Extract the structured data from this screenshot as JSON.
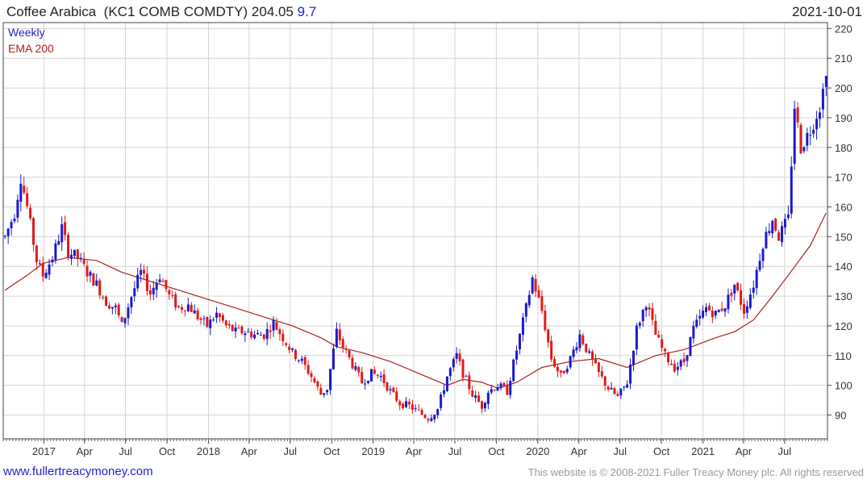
{
  "header": {
    "name": "Coffee Arabica",
    "ticker": "(KC1 COMB COMDTY)",
    "last": "204.05",
    "change": "9.7",
    "date": "2021-10-01"
  },
  "legend": {
    "weekly_label": "Weekly",
    "weekly_color": "#2222cc",
    "ema_label": "EMA 200",
    "ema_color": "#aa2222"
  },
  "colors": {
    "up": "#1a1acc",
    "down": "#e01a1a",
    "grid": "#d4d4d4",
    "ema": "#aa2222"
  },
  "footer": {
    "site": "www.fullertreacymoney.com",
    "copyright": "This website is © 2008-2021 Fuller Treacy Money plc. All rights reserved"
  },
  "chart_data": {
    "type": "candlestick",
    "interval": "weekly",
    "y_range": [
      82,
      222
    ],
    "y_ticks": [
      90,
      100,
      110,
      120,
      130,
      140,
      150,
      160,
      170,
      180,
      190,
      200,
      210,
      220
    ],
    "x_range": [
      "2016-10-03",
      "2021-10-04"
    ],
    "x_ticks": [
      {
        "label": "2017",
        "date": "2017-01-01"
      },
      {
        "label": "Apr",
        "date": "2017-04-01"
      },
      {
        "label": "Jul",
        "date": "2017-07-01"
      },
      {
        "label": "Oct",
        "date": "2017-10-01"
      },
      {
        "label": "2018",
        "date": "2018-01-01"
      },
      {
        "label": "Apr",
        "date": "2018-04-01"
      },
      {
        "label": "Jul",
        "date": "2018-07-01"
      },
      {
        "label": "Oct",
        "date": "2018-10-01"
      },
      {
        "label": "2019",
        "date": "2019-01-01"
      },
      {
        "label": "Apr",
        "date": "2019-04-01"
      },
      {
        "label": "Jul",
        "date": "2019-07-01"
      },
      {
        "label": "Oct",
        "date": "2019-10-01"
      },
      {
        "label": "2020",
        "date": "2020-01-01"
      },
      {
        "label": "Apr",
        "date": "2020-04-01"
      },
      {
        "label": "Jul",
        "date": "2020-07-01"
      },
      {
        "label": "Oct",
        "date": "2020-10-01"
      },
      {
        "label": "2021",
        "date": "2021-01-01"
      },
      {
        "label": "Apr",
        "date": "2021-04-01"
      },
      {
        "label": "Jul",
        "date": "2021-07-01"
      }
    ],
    "close_path": [
      [
        "2016-10-07",
        150
      ],
      [
        "2016-10-28",
        158
      ],
      [
        "2016-11-11",
        170
      ],
      [
        "2016-11-25",
        160
      ],
      [
        "2016-12-16",
        142
      ],
      [
        "2016-12-30",
        137
      ],
      [
        "2017-01-20",
        143
      ],
      [
        "2017-02-10",
        153
      ],
      [
        "2017-02-24",
        145
      ],
      [
        "2017-03-17",
        143
      ],
      [
        "2017-04-07",
        138
      ],
      [
        "2017-04-28",
        134
      ],
      [
        "2017-05-19",
        128
      ],
      [
        "2017-06-09",
        126
      ],
      [
        "2017-06-23",
        120
      ],
      [
        "2017-07-14",
        130
      ],
      [
        "2017-08-04",
        138
      ],
      [
        "2017-08-25",
        131
      ],
      [
        "2017-09-15",
        137
      ],
      [
        "2017-10-06",
        130
      ],
      [
        "2017-10-27",
        126
      ],
      [
        "2017-11-17",
        127
      ],
      [
        "2017-12-08",
        123
      ],
      [
        "2017-12-29",
        120
      ],
      [
        "2018-01-19",
        124
      ],
      [
        "2018-02-09",
        120
      ],
      [
        "2018-03-02",
        118
      ],
      [
        "2018-03-23",
        118
      ],
      [
        "2018-04-13",
        117
      ],
      [
        "2018-05-04",
        117
      ],
      [
        "2018-05-25",
        121
      ],
      [
        "2018-06-15",
        116
      ],
      [
        "2018-07-06",
        111
      ],
      [
        "2018-07-27",
        108
      ],
      [
        "2018-08-17",
        103
      ],
      [
        "2018-09-07",
        97
      ],
      [
        "2018-09-21",
        99
      ],
      [
        "2018-10-12",
        118
      ],
      [
        "2018-10-26",
        113
      ],
      [
        "2018-11-16",
        107
      ],
      [
        "2018-12-07",
        101
      ],
      [
        "2018-12-28",
        104
      ],
      [
        "2019-01-18",
        103
      ],
      [
        "2019-02-08",
        98
      ],
      [
        "2019-03-01",
        94
      ],
      [
        "2019-03-22",
        93
      ],
      [
        "2019-04-12",
        91
      ],
      [
        "2019-05-03",
        89
      ],
      [
        "2019-05-24",
        92
      ],
      [
        "2019-06-14",
        103
      ],
      [
        "2019-07-05",
        110
      ],
      [
        "2019-07-19",
        104
      ],
      [
        "2019-08-09",
        97
      ],
      [
        "2019-08-30",
        93
      ],
      [
        "2019-09-13",
        98
      ],
      [
        "2019-10-04",
        100
      ],
      [
        "2019-10-25",
        98
      ],
      [
        "2019-11-15",
        112
      ],
      [
        "2019-12-06",
        126
      ],
      [
        "2019-12-20",
        136
      ],
      [
        "2020-01-10",
        125
      ],
      [
        "2020-01-31",
        109
      ],
      [
        "2020-02-21",
        103
      ],
      [
        "2020-03-13",
        109
      ],
      [
        "2020-04-03",
        117
      ],
      [
        "2020-04-24",
        110
      ],
      [
        "2020-05-15",
        104
      ],
      [
        "2020-06-05",
        99
      ],
      [
        "2020-06-26",
        96
      ],
      [
        "2020-07-17",
        101
      ],
      [
        "2020-08-07",
        119
      ],
      [
        "2020-08-28",
        128
      ],
      [
        "2020-09-18",
        117
      ],
      [
        "2020-10-09",
        110
      ],
      [
        "2020-10-30",
        106
      ],
      [
        "2020-11-20",
        108
      ],
      [
        "2020-12-11",
        119
      ],
      [
        "2021-01-08",
        126
      ],
      [
        "2021-01-29",
        124
      ],
      [
        "2021-02-19",
        127
      ],
      [
        "2021-03-12",
        134
      ],
      [
        "2021-04-02",
        125
      ],
      [
        "2021-04-23",
        134
      ],
      [
        "2021-05-14",
        148
      ],
      [
        "2021-06-04",
        156
      ],
      [
        "2021-06-18",
        150
      ],
      [
        "2021-07-09",
        156
      ],
      [
        "2021-07-23",
        194
      ],
      [
        "2021-08-06",
        180
      ],
      [
        "2021-08-27",
        186
      ],
      [
        "2021-09-17",
        194
      ],
      [
        "2021-10-01",
        204.05
      ]
    ],
    "ema_200": [
      [
        "2016-10-07",
        132
      ],
      [
        "2016-11-25",
        137
      ],
      [
        "2016-12-30",
        141
      ],
      [
        "2017-02-24",
        143
      ],
      [
        "2017-04-28",
        142
      ],
      [
        "2017-06-23",
        138
      ],
      [
        "2017-08-25",
        135
      ],
      [
        "2017-10-27",
        132
      ],
      [
        "2017-12-29",
        129
      ],
      [
        "2018-03-02",
        126
      ],
      [
        "2018-05-04",
        123
      ],
      [
        "2018-07-06",
        120
      ],
      [
        "2018-09-07",
        116
      ],
      [
        "2018-10-12",
        113
      ],
      [
        "2018-12-07",
        111
      ],
      [
        "2019-02-08",
        108
      ],
      [
        "2019-04-12",
        104
      ],
      [
        "2019-06-14",
        100
      ],
      [
        "2019-07-19",
        102
      ],
      [
        "2019-08-30",
        101
      ],
      [
        "2019-10-04",
        99
      ],
      [
        "2019-11-15",
        101
      ],
      [
        "2020-01-10",
        106
      ],
      [
        "2020-03-13",
        108
      ],
      [
        "2020-05-15",
        109
      ],
      [
        "2020-07-17",
        106
      ],
      [
        "2020-09-18",
        110
      ],
      [
        "2020-11-20",
        112
      ],
      [
        "2021-01-29",
        116
      ],
      [
        "2021-03-12",
        118
      ],
      [
        "2021-04-23",
        122
      ],
      [
        "2021-06-04",
        130
      ],
      [
        "2021-07-09",
        137
      ],
      [
        "2021-08-27",
        147
      ],
      [
        "2021-10-01",
        158
      ]
    ]
  }
}
